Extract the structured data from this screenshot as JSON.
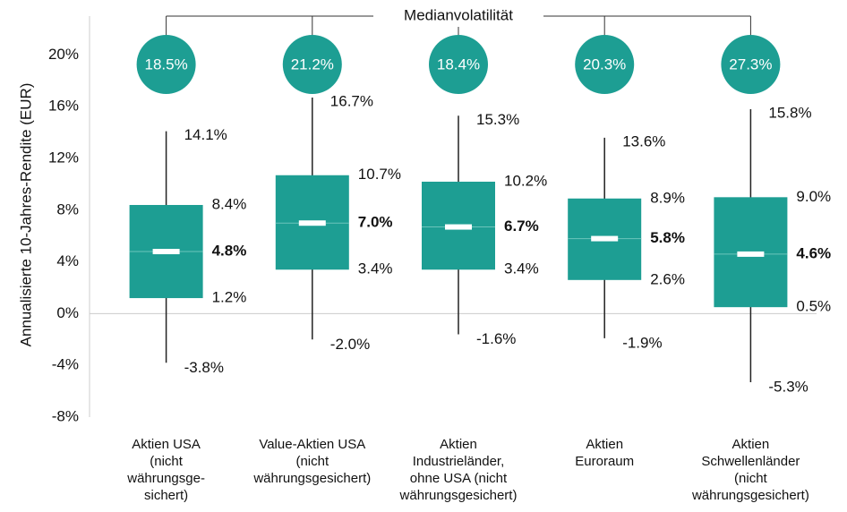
{
  "chart_data": {
    "type": "box",
    "ylabel": "Annualisierte 10-Jahres-Rendite (EUR)",
    "ylim": [
      -8,
      23
    ],
    "yticks": [
      {
        "value": -8,
        "label": "-8%"
      },
      {
        "value": -4,
        "label": "-4%"
      },
      {
        "value": 0,
        "label": "0%"
      },
      {
        "value": 4,
        "label": "4%"
      },
      {
        "value": 8,
        "label": "8%"
      },
      {
        "value": 12,
        "label": "12%"
      },
      {
        "value": 16,
        "label": "16%"
      },
      {
        "value": 20,
        "label": "20%"
      }
    ],
    "color": "#1d9e93",
    "categories": [
      [
        "Aktien USA",
        "(nicht",
        "währungsge-",
        "sichert)"
      ],
      [
        "Value-Aktien USA",
        "(nicht",
        "währungsgesichert)"
      ],
      [
        "Aktien",
        "Industrieländer,",
        "ohne USA (nicht",
        "währungsgesichert)"
      ],
      [
        "Aktien",
        "Euroraum"
      ],
      [
        "Aktien",
        "Schwellenländer",
        "(nicht",
        "währungsgesichert)"
      ]
    ],
    "boxes": [
      {
        "min": -3.8,
        "q1": 1.2,
        "median": 4.8,
        "q3": 8.4,
        "max": 14.1,
        "value_labels": {
          "min": "-3.8%",
          "q1": "1.2%",
          "median": "4.8%",
          "q3": "8.4%",
          "max": "14.1%"
        }
      },
      {
        "min": -2.0,
        "q1": 3.4,
        "median": 7.0,
        "q3": 10.7,
        "max": 16.7,
        "value_labels": {
          "min": "-2.0%",
          "q1": "3.4%",
          "median": "7.0%",
          "q3": "10.7%",
          "max": "16.7%"
        }
      },
      {
        "min": -1.6,
        "q1": 3.4,
        "median": 6.7,
        "q3": 10.2,
        "max": 15.3,
        "value_labels": {
          "min": "-1.6%",
          "q1": "3.4%",
          "median": "6.7%",
          "q3": "10.2%",
          "max": "15.3%"
        }
      },
      {
        "min": -1.9,
        "q1": 2.6,
        "median": 5.8,
        "q3": 8.9,
        "max": 13.6,
        "value_labels": {
          "min": "-1.9%",
          "q1": "2.6%",
          "median": "5.8%",
          "q3": "8.9%",
          "max": "13.6%"
        }
      },
      {
        "min": -5.3,
        "q1": 0.5,
        "median": 4.6,
        "q3": 9.0,
        "max": 15.8,
        "value_labels": {
          "min": "-5.3%",
          "q1": "0.5%",
          "median": "4.6%",
          "q3": "9.0%",
          "max": "15.8%"
        }
      }
    ],
    "volatility": {
      "label": "Medianvolatilität",
      "values": [
        18.5,
        21.2,
        18.4,
        20.3,
        27.3
      ],
      "value_labels": [
        "18.5%",
        "21.2%",
        "18.4%",
        "20.3%",
        "27.3%"
      ]
    }
  }
}
